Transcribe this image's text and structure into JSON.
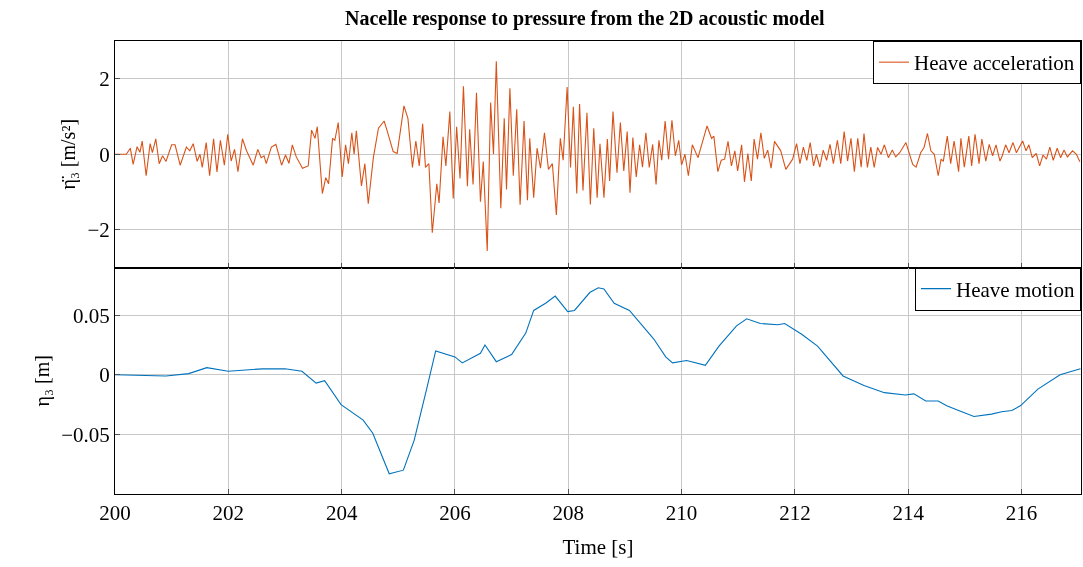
{
  "chart_data": [
    {
      "type": "line",
      "title": "Nacelle response to pressure from the 2D acoustic model",
      "ylabel": "η̈₃ [m/s²]",
      "xlim": [
        200,
        217.05
      ],
      "xticks": [
        200,
        202,
        204,
        206,
        208,
        210,
        212,
        214,
        216
      ],
      "ylim": [
        -3,
        3
      ],
      "yticks": [
        {
          "value": -2,
          "label": "−2"
        },
        0,
        2
      ],
      "grid": true,
      "legend": "top right",
      "tick_labels": "y",
      "x": [
        200,
        200.2,
        200.27,
        200.32,
        200.39,
        200.44,
        200.48,
        200.55,
        200.62,
        200.66,
        200.72,
        200.78,
        200.84,
        200.9,
        201.0,
        201.06,
        201.15,
        201.26,
        201.32,
        201.38,
        201.45,
        201.5,
        201.54,
        201.61,
        201.67,
        201.74,
        201.8,
        201.86,
        201.93,
        201.99,
        202.05,
        202.11,
        202.17,
        202.25,
        202.32,
        202.44,
        202.52,
        202.58,
        202.63,
        202.67,
        202.76,
        202.84,
        202.94,
        203.01,
        203.07,
        203.13,
        203.2,
        203.31,
        203.41,
        203.47,
        203.53,
        203.57,
        203.66,
        203.72,
        203.77,
        203.84,
        203.88,
        203.94,
        204.01,
        204.07,
        204.12,
        204.18,
        204.22,
        204.26,
        204.35,
        204.41,
        204.47,
        204.56,
        204.65,
        204.75,
        204.8,
        204.91,
        204.98,
        205.1,
        205.17,
        205.25,
        205.31,
        205.37,
        205.43,
        205.48,
        205.54,
        205.6,
        205.68,
        205.72,
        205.79,
        205.84,
        205.91,
        205.97,
        206.03,
        206.09,
        206.15,
        206.22,
        206.26,
        206.32,
        206.38,
        206.45,
        206.5,
        206.57,
        206.63,
        206.68,
        206.73,
        206.81,
        206.87,
        206.91,
        206.97,
        207.03,
        207.09,
        207.15,
        207.22,
        207.28,
        207.32,
        207.39,
        207.45,
        207.51,
        207.58,
        207.65,
        207.72,
        207.79,
        207.86,
        207.91,
        207.98,
        208.04,
        208.09,
        208.15,
        208.2,
        208.26,
        208.33,
        208.39,
        208.45,
        208.51,
        208.56,
        208.63,
        208.69,
        208.73,
        208.79,
        208.86,
        208.92,
        208.98,
        209.04,
        209.09,
        209.14,
        209.2,
        209.26,
        209.31,
        209.37,
        209.43,
        209.49,
        209.55,
        209.6,
        209.65,
        209.71,
        209.77,
        209.83,
        209.89,
        209.95,
        210.0,
        210.06,
        210.12,
        210.19,
        210.29,
        210.45,
        210.53,
        210.57,
        210.64,
        210.7,
        210.76,
        210.82,
        210.88,
        210.94,
        210.99,
        211.06,
        211.11,
        211.17,
        211.23,
        211.28,
        211.34,
        211.4,
        211.46,
        211.52,
        211.58,
        211.64,
        211.75,
        211.84,
        211.96,
        212.03,
        212.09,
        212.15,
        212.21,
        212.27,
        212.33,
        212.38,
        212.44,
        212.5,
        212.56,
        212.62,
        212.68,
        212.75,
        212.81,
        212.87,
        212.93,
        212.99,
        213.05,
        213.11,
        213.17,
        213.22,
        213.28,
        213.34,
        213.4,
        213.46,
        213.52,
        213.58,
        213.65,
        213.72,
        213.78,
        213.85,
        213.96,
        214.08,
        214.14,
        214.22,
        214.28,
        214.34,
        214.4,
        214.46,
        214.53,
        214.58,
        214.62,
        214.69,
        214.75,
        214.81,
        214.89,
        214.93,
        214.99,
        215.07,
        215.12,
        215.18,
        215.25,
        215.3,
        215.37,
        215.43,
        215.49,
        215.55,
        215.62,
        215.66,
        215.72,
        215.78,
        215.85,
        215.91,
        216.02,
        216.08,
        216.13,
        216.19,
        216.26,
        216.32,
        216.38,
        216.44,
        216.5,
        216.56,
        216.63,
        216.69,
        216.75,
        216.81,
        216.9,
        216.97,
        217.03
      ],
      "series": [
        {
          "name": "Heave acceleration",
          "color": "#d95319",
          "values": [
            0,
            0,
            0.16,
            -0.27,
            0.2,
            0.05,
            0.35,
            -0.57,
            0.28,
            0.04,
            0.41,
            -0.25,
            -0.04,
            -0.19,
            0.25,
            0.25,
            -0.29,
            0.19,
            0.09,
            0.28,
            -0.19,
            0,
            -0.35,
            0.31,
            -0.57,
            0.41,
            -0.47,
            0.37,
            -0.29,
            0.53,
            -0.18,
            0.13,
            -0.46,
            0.41,
            0.1,
            -0.29,
            0.13,
            -0.09,
            -0.04,
            -0.25,
            0.19,
            0.26,
            -0.29,
            -0.02,
            -0.24,
            0.25,
            -0.07,
            -0.37,
            -0.31,
            0.64,
            0.42,
            0.73,
            -1.04,
            -0.62,
            -0.78,
            0.42,
            0.37,
            0.84,
            -0.6,
            0.25,
            -0.25,
            0.57,
            0,
            0.62,
            -0.84,
            -0.25,
            -1.31,
            -0.09,
            0.69,
            0.88,
            0.64,
            0.07,
            0.02,
            1.28,
            0.95,
            -0.35,
            0.35,
            -0.31,
            0.81,
            -0.35,
            -0.25,
            -2.08,
            -0.78,
            -1.29,
            0.46,
            -0.31,
            1.13,
            -1.17,
            0.73,
            -0.64,
            1.8,
            -0.85,
            0.66,
            -0.8,
            1.63,
            -1.26,
            -0.19,
            -2.56,
            1.37,
            0,
            2.46,
            -1.43,
            0.95,
            -0.93,
            1.75,
            -0.57,
            1.19,
            -1.34,
            0.88,
            -1.22,
            0.42,
            -1.15,
            0.16,
            -0.37,
            0.57,
            -0.4,
            -0.25,
            -1.61,
            0.42,
            -0.16,
            1.78,
            -0.35,
            1.26,
            -1.04,
            1.33,
            -0.96,
            1.1,
            -1.33,
            0.69,
            -1.15,
            0.28,
            -1.15,
            0.4,
            -0.71,
            1.13,
            -0.49,
            0.84,
            -0.44,
            0.6,
            -1.02,
            0.44,
            -0.6,
            0.25,
            -0.34,
            0.57,
            -0.35,
            0.26,
            -0.8,
            0.37,
            -0.16,
            0.88,
            -0.13,
            0.9,
            -0.04,
            0.37,
            -0.28,
            0,
            -0.57,
            0.25,
            -0.09,
            0.75,
            0.42,
            0.48,
            -0.46,
            -0.16,
            -0.13,
            0.34,
            -0.31,
            0.09,
            -0.44,
            0.25,
            -0.73,
            0.02,
            -0.71,
            0.4,
            -0.13,
            0.57,
            -0.11,
            0.11,
            -0.37,
            0.34,
            0.09,
            -0.4,
            -0.13,
            0.28,
            -0.25,
            0.19,
            -0.16,
            0.31,
            -0.31,
            0,
            -0.34,
            0.11,
            -0.16,
            0.26,
            -0.25,
            0.37,
            -0.25,
            0.6,
            -0.18,
            0.42,
            -0.46,
            0.42,
            -0.34,
            0.55,
            -0.35,
            0.19,
            -0.35,
            0.18,
            0,
            0.25,
            -0.09,
            0.11,
            -0.07,
            0.04,
            0.31,
            -0.27,
            -0.34,
            0.04,
            0.18,
            0.55,
            0.09,
            0,
            -0.57,
            -0.13,
            -0.19,
            0.48,
            -0.25,
            0.35,
            -0.46,
            0.42,
            -0.34,
            0.48,
            -0.31,
            0.53,
            -0.25,
            0.4,
            -0.18,
            0.26,
            -0.04,
            0.25,
            -0.18,
            -0.04,
            0.25,
            0.04,
            0.31,
            0.04,
            0.35,
            0.09,
            0.25,
            -0.09,
            0.02,
            -0.31,
            -0.02,
            -0.13,
            0.19,
            -0.16,
            0.16,
            -0.09,
            0.11,
            -0.07,
            0.09,
            0,
            -0.2
          ]
        }
      ]
    },
    {
      "type": "line",
      "xlabel": "Time [s]",
      "ylabel": "η₃ [m]",
      "xlim": [
        200,
        217.05
      ],
      "xticks": [
        200,
        202,
        204,
        206,
        208,
        210,
        212,
        214,
        216
      ],
      "ylim": [
        -0.1,
        0.09
      ],
      "yticks": [
        {
          "value": -0.05,
          "label": "−0.05"
        },
        0,
        0.05
      ],
      "grid": true,
      "legend": "top right",
      "x": [
        200,
        200.9,
        201.3,
        201.62,
        202.0,
        202.6,
        203.0,
        203.3,
        203.55,
        203.7,
        203.99,
        204.38,
        204.55,
        204.84,
        205.09,
        205.28,
        205.5,
        205.66,
        206.0,
        206.13,
        206.45,
        206.53,
        206.73,
        207.0,
        207.25,
        207.39,
        207.6,
        207.77,
        207.99,
        208.11,
        208.38,
        208.53,
        208.63,
        208.81,
        209.08,
        209.51,
        209.72,
        209.84,
        210.09,
        210.42,
        210.66,
        210.97,
        211.15,
        211.39,
        211.7,
        211.82,
        212.12,
        212.4,
        212.85,
        213.22,
        213.58,
        213.95,
        214.1,
        214.31,
        214.53,
        214.68,
        214.89,
        215.16,
        215.47,
        215.65,
        215.83,
        215.98,
        216.29,
        216.68,
        217.04
      ],
      "series": [
        {
          "name": "Heave motion",
          "color": "#0072bd",
          "values": [
            0,
            -0.001,
            0.001,
            0.006,
            0.003,
            0.005,
            0.005,
            0.003,
            -0.007,
            -0.005,
            -0.025,
            -0.038,
            -0.049,
            -0.083,
            -0.08,
            -0.055,
            -0.012,
            0.02,
            0.015,
            0.01,
            0.018,
            0.025,
            0.011,
            0.017,
            0.035,
            0.054,
            0.06,
            0.066,
            0.053,
            0.054,
            0.069,
            0.073,
            0.072,
            0.06,
            0.054,
            0.03,
            0.015,
            0.01,
            0.012,
            0.008,
            0.024,
            0.041,
            0.047,
            0.043,
            0.042,
            0.043,
            0.034,
            0.024,
            -0.001,
            -0.009,
            -0.015,
            -0.017,
            -0.016,
            -0.022,
            -0.022,
            -0.026,
            -0.03,
            -0.035,
            -0.033,
            -0.031,
            -0.03,
            -0.026,
            -0.012,
            0,
            0.005
          ]
        }
      ]
    }
  ]
}
